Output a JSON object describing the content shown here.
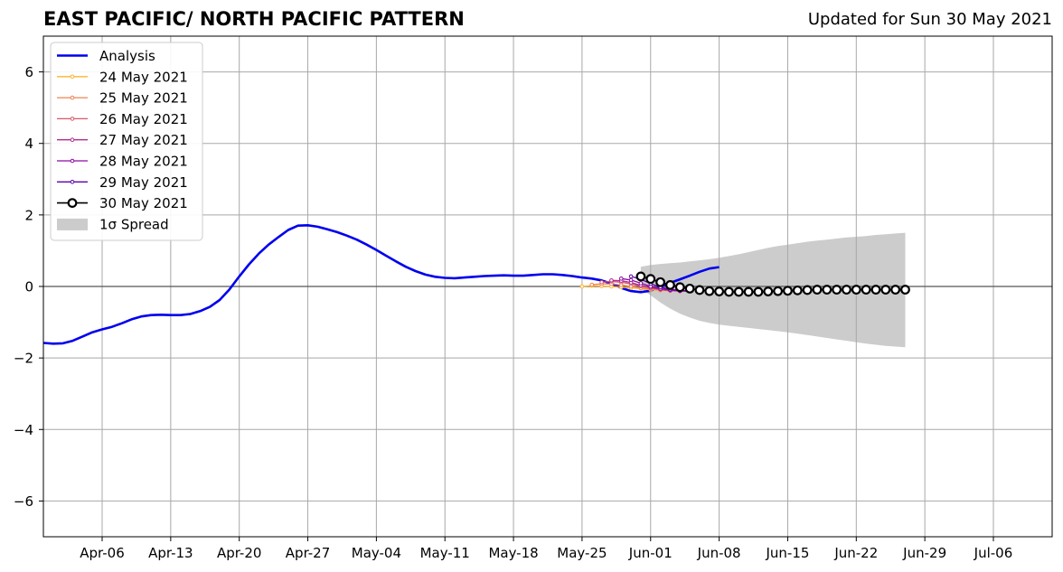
{
  "chart_data": {
    "type": "line",
    "title": "EAST PACIFIC/ NORTH PACIFIC PATTERN",
    "subtitle": "Updated for Sun 30 May 2021",
    "ylim": [
      -7,
      7
    ],
    "yticks": [
      6,
      4,
      2,
      0,
      -2,
      -4,
      -6
    ],
    "ytick_labels": [
      "6",
      "4",
      "2",
      "0",
      "−2",
      "−4",
      "−6"
    ],
    "xlim": [
      "2021-03-31",
      "2021-07-12"
    ],
    "xticks": [
      "2021-04-06",
      "2021-04-13",
      "2021-04-20",
      "2021-04-27",
      "2021-05-04",
      "2021-05-11",
      "2021-05-18",
      "2021-05-25",
      "2021-06-01",
      "2021-06-08",
      "2021-06-15",
      "2021-06-22",
      "2021-06-29",
      "2021-07-06"
    ],
    "xtick_labels": [
      "Apr-06",
      "Apr-13",
      "Apr-20",
      "Apr-27",
      "May-04",
      "May-11",
      "May-18",
      "May-25",
      "Jun-01",
      "Jun-08",
      "Jun-15",
      "Jun-22",
      "Jun-29",
      "Jul-06"
    ],
    "grid": true,
    "legend_position": "top-left",
    "analysis": {
      "name": "Analysis",
      "color": "#0000ee",
      "start": "2021-03-31",
      "values": [
        -1.58,
        -1.6,
        -1.59,
        -1.52,
        -1.4,
        -1.28,
        -1.2,
        -1.13,
        -1.03,
        -0.92,
        -0.84,
        -0.8,
        -0.79,
        -0.8,
        -0.8,
        -0.77,
        -0.69,
        -0.57,
        -0.38,
        -0.08,
        0.28,
        0.62,
        0.92,
        1.17,
        1.38,
        1.58,
        1.7,
        1.71,
        1.67,
        1.6,
        1.52,
        1.42,
        1.31,
        1.17,
        1.02,
        0.86,
        0.7,
        0.55,
        0.43,
        0.33,
        0.27,
        0.24,
        0.23,
        0.25,
        0.27,
        0.29,
        0.3,
        0.31,
        0.3,
        0.3,
        0.32,
        0.34,
        0.34,
        0.32,
        0.29,
        0.25,
        0.22,
        0.17,
        0.08,
        -0.04,
        -0.13,
        -0.16,
        -0.12,
        -0.01,
        0.1,
        0.2,
        0.3,
        0.41,
        0.5,
        0.54
      ]
    },
    "forecasts": [
      {
        "name": "24 May 2021",
        "color": "#fdb42f",
        "start": "2021-05-25",
        "values": [
          0.0,
          0.02,
          0.01,
          0.0,
          -0.02,
          -0.04,
          -0.06,
          -0.09,
          -0.11,
          -0.12,
          -0.13,
          -0.13
        ]
      },
      {
        "name": "25 May 2021",
        "color": "#f0804f",
        "start": "2021-05-26",
        "values": [
          0.05,
          0.07,
          0.07,
          0.04,
          0.0,
          -0.04,
          -0.07,
          -0.1,
          -0.12,
          -0.13,
          -0.13
        ]
      },
      {
        "name": "26 May 2021",
        "color": "#d8576b",
        "start": "2021-05-27",
        "values": [
          0.12,
          0.14,
          0.12,
          0.07,
          0.01,
          -0.04,
          -0.08,
          -0.11,
          -0.13,
          -0.13
        ]
      },
      {
        "name": "27 May 2021",
        "color": "#b12a90",
        "start": "2021-05-28",
        "values": [
          0.17,
          0.16,
          0.11,
          0.03,
          -0.03,
          -0.08,
          -0.11,
          -0.13,
          -0.13
        ]
      },
      {
        "name": "28 May 2021",
        "color": "#8b0aa5",
        "start": "2021-05-29",
        "values": [
          0.22,
          0.18,
          0.09,
          0.0,
          -0.06,
          -0.1,
          -0.12,
          -0.13
        ]
      },
      {
        "name": "29 May 2021",
        "color": "#5c01a6",
        "start": "2021-05-30",
        "values": [
          0.28,
          0.2,
          0.08,
          -0.02,
          -0.08,
          -0.11,
          -0.13
        ]
      }
    ],
    "current": {
      "name": "30 May 2021",
      "color": "#000000",
      "start": "2021-05-31",
      "values": [
        0.28,
        0.21,
        0.12,
        0.04,
        -0.02,
        -0.06,
        -0.1,
        -0.13,
        -0.14,
        -0.15,
        -0.15,
        -0.15,
        -0.15,
        -0.14,
        -0.13,
        -0.12,
        -0.11,
        -0.1,
        -0.09,
        -0.09,
        -0.09,
        -0.09,
        -0.09,
        -0.09,
        -0.09,
        -0.09,
        -0.09,
        -0.09
      ]
    },
    "spread": {
      "name": "1σ Spread",
      "color": "#cccccc",
      "start": "2021-05-31",
      "upper": [
        0.55,
        0.6,
        0.63,
        0.65,
        0.67,
        0.7,
        0.73,
        0.76,
        0.8,
        0.85,
        0.9,
        0.96,
        1.02,
        1.08,
        1.13,
        1.17,
        1.21,
        1.25,
        1.28,
        1.31,
        1.34,
        1.37,
        1.39,
        1.41,
        1.44,
        1.46,
        1.48,
        1.5
      ],
      "lower": [
        -0.05,
        -0.25,
        -0.45,
        -0.62,
        -0.76,
        -0.87,
        -0.96,
        -1.02,
        -1.07,
        -1.1,
        -1.13,
        -1.16,
        -1.19,
        -1.22,
        -1.25,
        -1.28,
        -1.32,
        -1.36,
        -1.4,
        -1.44,
        -1.48,
        -1.52,
        -1.56,
        -1.6,
        -1.63,
        -1.66,
        -1.68,
        -1.7
      ]
    }
  }
}
